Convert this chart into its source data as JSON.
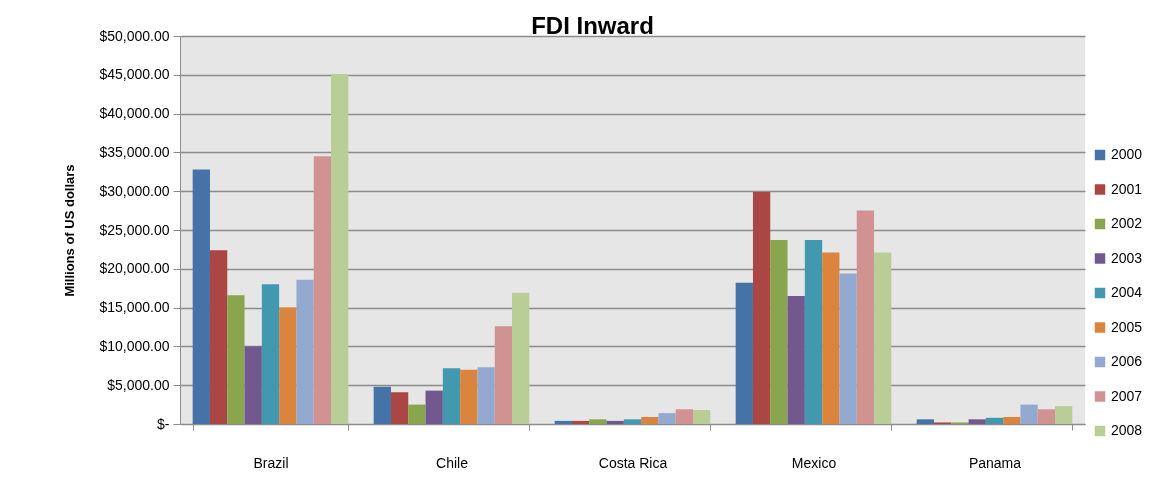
{
  "chart_data": {
    "type": "bar",
    "title": "FDI Inward",
    "ylabel": "Millions of US dollars",
    "categories": [
      "Brazil",
      "Chile",
      "Costa Rica",
      "Mexico",
      "Panama"
    ],
    "series": [
      {
        "name": "2000",
        "color": "#4572a7",
        "values": [
          32800,
          4800,
          400,
          18200,
          600
        ]
      },
      {
        "name": "2001",
        "color": "#aa4643",
        "values": [
          22400,
          4100,
          400,
          29900,
          200
        ]
      },
      {
        "name": "2002",
        "color": "#89a54e",
        "values": [
          16600,
          2500,
          600,
          23700,
          200
        ]
      },
      {
        "name": "2003",
        "color": "#71588f",
        "values": [
          10000,
          4300,
          400,
          16500,
          600
        ]
      },
      {
        "name": "2004",
        "color": "#4198af",
        "values": [
          18000,
          7200,
          600,
          23700,
          800
        ]
      },
      {
        "name": "2005",
        "color": "#db843d",
        "values": [
          15000,
          7000,
          900,
          22100,
          900
        ]
      },
      {
        "name": "2006",
        "color": "#93a9cf",
        "values": [
          18600,
          7300,
          1400,
          19400,
          2500
        ]
      },
      {
        "name": "2007",
        "color": "#d19392",
        "values": [
          34500,
          12600,
          1900,
          27500,
          1900
        ]
      },
      {
        "name": "2008",
        "color": "#b9cd96",
        "values": [
          45100,
          16900,
          1800,
          22100,
          2300
        ]
      }
    ],
    "ylim": [
      0,
      50000
    ],
    "yticks": [
      {
        "value": 0,
        "label": "$-"
      },
      {
        "value": 5000,
        "label": "$5,000.00"
      },
      {
        "value": 10000,
        "label": "$10,000.00"
      },
      {
        "value": 15000,
        "label": "$15,000.00"
      },
      {
        "value": 20000,
        "label": "$20,000.00"
      },
      {
        "value": 25000,
        "label": "$25,000.00"
      },
      {
        "value": 30000,
        "label": "$30,000.00"
      },
      {
        "value": 35000,
        "label": "$35,000.00"
      },
      {
        "value": 40000,
        "label": "$40,000.00"
      },
      {
        "value": 45000,
        "label": "$45,000.00"
      },
      {
        "value": 50000,
        "label": "$50,000.00"
      }
    ],
    "grid": "y",
    "legend": "right"
  }
}
